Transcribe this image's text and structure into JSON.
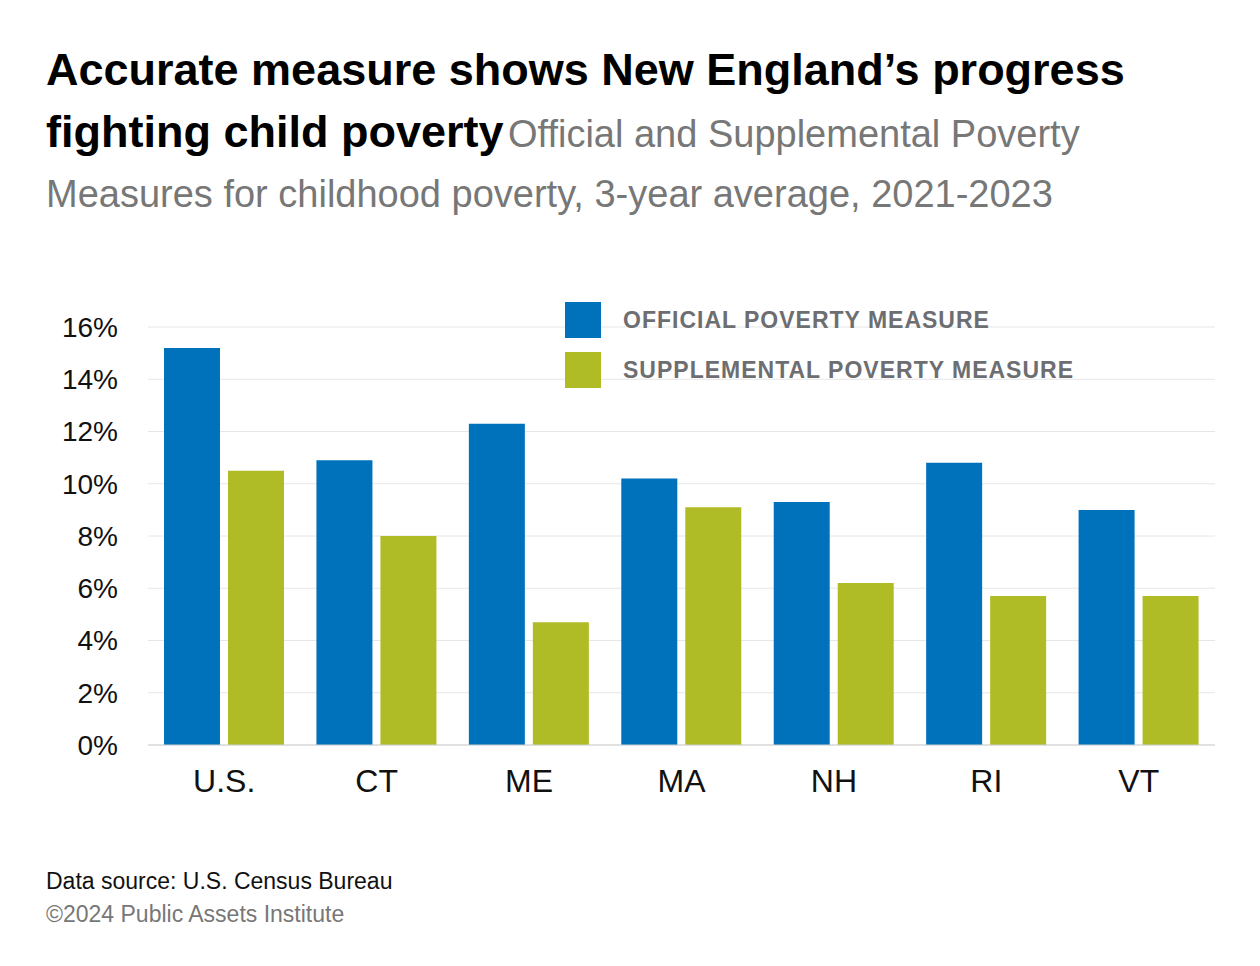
{
  "chart_data": {
    "type": "bar",
    "title": "Accurate measure shows New England’s progress fighting child poverty",
    "subtitle": "Official and Supplemental Poverty Measures for childhood poverty, 3-year average, 2021-2023",
    "categories": [
      "U.S.",
      "CT",
      "ME",
      "MA",
      "NH",
      "RI",
      "VT"
    ],
    "series": [
      {
        "name": "OFFICIAL POVERTY MEASURE",
        "color": "#0072bc",
        "values": [
          15.2,
          10.9,
          12.3,
          10.2,
          9.3,
          10.8,
          9.0
        ]
      },
      {
        "name": "SUPPLEMENTAL POVERTY MEASURE",
        "color": "#b0bc26",
        "values": [
          10.5,
          8.0,
          4.7,
          9.1,
          6.2,
          5.7,
          5.7
        ]
      }
    ],
    "ylim": [
      0,
      16
    ],
    "yticks": [
      {
        "value": 0,
        "label": "0%"
      },
      {
        "value": 2,
        "label": "2%"
      },
      {
        "value": 4,
        "label": "4%"
      },
      {
        "value": 6,
        "label": "6%"
      },
      {
        "value": 8,
        "label": "8%"
      },
      {
        "value": 10,
        "label": "10%"
      },
      {
        "value": 12,
        "label": "12%"
      },
      {
        "value": 14,
        "label": "14%"
      },
      {
        "value": 16,
        "label": "16%"
      }
    ],
    "grid": true,
    "legend": "top right",
    "source": "Data source: U.S. Census Bureau",
    "copyright": "©2024 Public Assets Institute"
  }
}
